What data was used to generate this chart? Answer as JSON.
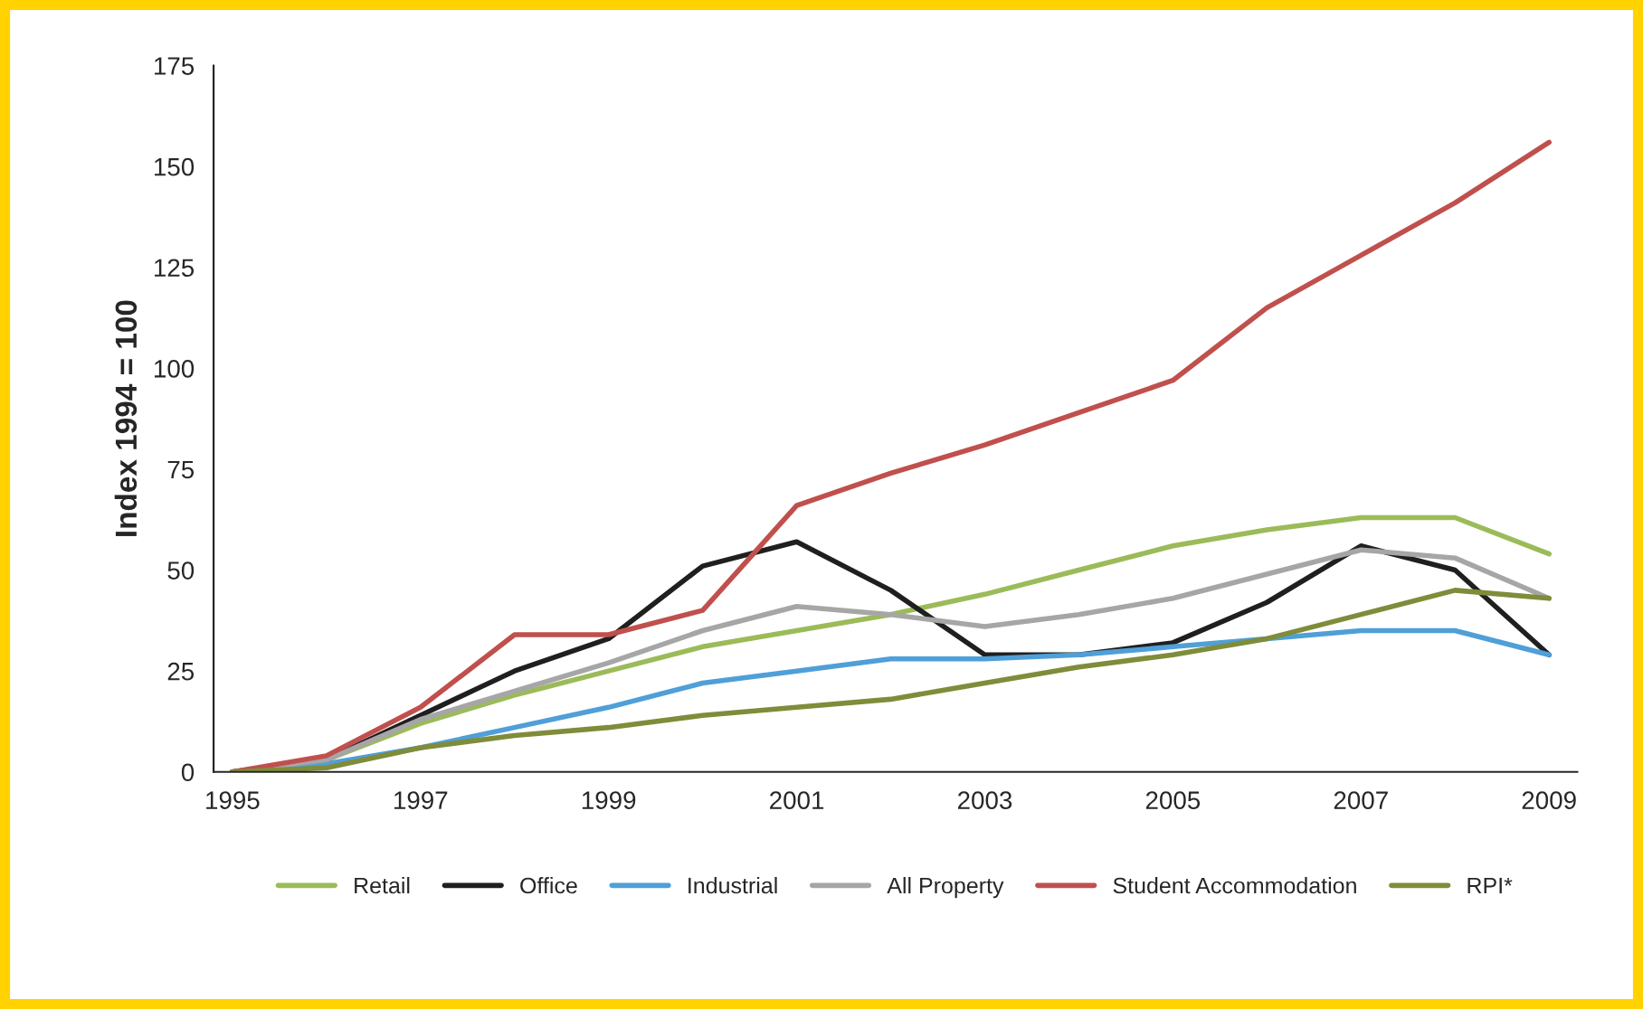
{
  "chart_data": {
    "type": "line",
    "ylabel": "Index 1994 = 100",
    "x": [
      1995,
      1996,
      1997,
      1998,
      1999,
      2000,
      2001,
      2002,
      2003,
      2004,
      2005,
      2006,
      2007,
      2008,
      2009
    ],
    "series": [
      {
        "name": "Retail",
        "color": "#9bbb59",
        "values": [
          0,
          3,
          12,
          19,
          25,
          31,
          35,
          39,
          44,
          50,
          56,
          60,
          63,
          63,
          54
        ]
      },
      {
        "name": "Office",
        "color": "#1f1f1f",
        "values": [
          0,
          3,
          14,
          25,
          33,
          51,
          57,
          45,
          29,
          29,
          32,
          42,
          56,
          50,
          29
        ]
      },
      {
        "name": "Industrial",
        "color": "#4f9fd8",
        "values": [
          0,
          2,
          6,
          11,
          16,
          22,
          25,
          28,
          28,
          29,
          31,
          33,
          35,
          35,
          29
        ]
      },
      {
        "name": "All Property",
        "color": "#a6a6a6",
        "values": [
          0,
          3,
          13,
          20,
          27,
          35,
          41,
          39,
          36,
          39,
          43,
          49,
          55,
          53,
          43
        ]
      },
      {
        "name": "Student Accommodation",
        "color": "#c0504d",
        "values": [
          0,
          4,
          16,
          34,
          34,
          40,
          66,
          74,
          81,
          89,
          97,
          115,
          128,
          141,
          156
        ]
      },
      {
        "name": "RPI*",
        "color": "#7f8c3a",
        "values": [
          0,
          1,
          6,
          9,
          11,
          14,
          16,
          18,
          22,
          26,
          29,
          33,
          39,
          45,
          43
        ]
      }
    ],
    "xlim": [
      1994.8,
      2009.3
    ],
    "xticks": [
      1995,
      1997,
      1999,
      2001,
      2003,
      2005,
      2007,
      2009
    ],
    "ylim": [
      0,
      175
    ],
    "yticks": [
      0,
      25,
      50,
      75,
      100,
      125,
      150,
      175
    ],
    "grid": false,
    "legend": "bottom",
    "marker": "none",
    "line_style": "solid"
  }
}
